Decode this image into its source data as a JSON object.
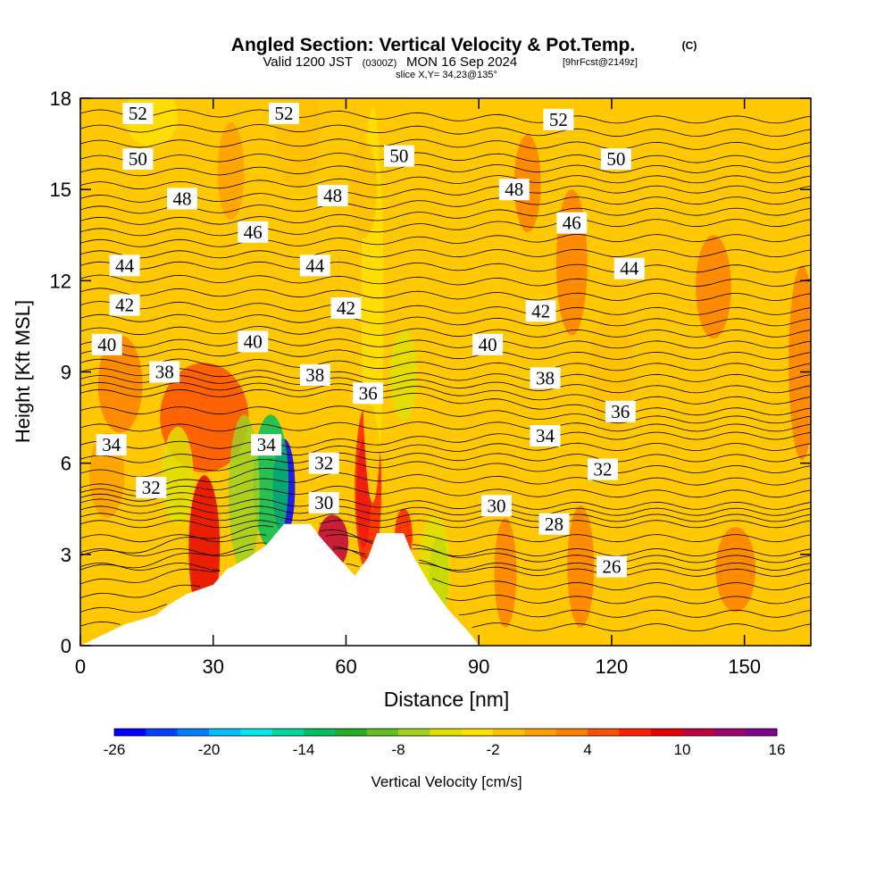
{
  "chart_data": {
    "type": "heatmap",
    "title": "Angled Section: Vertical Velocity & Pot.Temp.",
    "title_tag": "(C)",
    "subtitle_prefix": "Valid 1200 JST",
    "subtitle_utc": "(0300Z)",
    "subtitle_date": "MON 16 Sep 2024",
    "subtitle_fcst": "[9hrFcst@2149z]",
    "slice_label": "slice X,Y= 34,23@135°",
    "xlabel": "Distance [nm]",
    "ylabel": "Height [Kft MSL]",
    "xlim": [
      0,
      165
    ],
    "ylim": [
      0,
      18
    ],
    "x_ticks": [
      "0",
      "30",
      "60",
      "90",
      "120",
      "150"
    ],
    "y_ticks": [
      "0",
      "3",
      "6",
      "9",
      "12",
      "15",
      "18"
    ],
    "colorbar": {
      "label": "Vertical Velocity [cm/s]",
      "tick_labels": [
        "-26",
        "-20",
        "-14",
        "-8",
        "-2",
        "4",
        "10",
        "16"
      ],
      "colors": [
        "#0000ff",
        "#0040ff",
        "#0080ff",
        "#00c0ff",
        "#00e8e8",
        "#00d8a0",
        "#00c060",
        "#20b020",
        "#60c020",
        "#a0d020",
        "#e0e000",
        "#ffe000",
        "#ffc000",
        "#ffa000",
        "#ff8000",
        "#ff5000",
        "#ff2000",
        "#e80000",
        "#c00040",
        "#a00070",
        "#800090"
      ]
    },
    "terrain_kft": [
      [
        0,
        0
      ],
      [
        10,
        0.7
      ],
      [
        17,
        1
      ],
      [
        20,
        1.35
      ],
      [
        24,
        1.7
      ],
      [
        30,
        2
      ],
      [
        33,
        2.5
      ],
      [
        38,
        2.9
      ],
      [
        42,
        3.3
      ],
      [
        46,
        4
      ],
      [
        52,
        4
      ],
      [
        54,
        3.6
      ],
      [
        57,
        3.1
      ],
      [
        62,
        2.3
      ],
      [
        65,
        2.9
      ],
      [
        67,
        3.7
      ],
      [
        73,
        3.7
      ],
      [
        75,
        3
      ],
      [
        79,
        2
      ],
      [
        83,
        1.2
      ],
      [
        88,
        0.4
      ],
      [
        90,
        0
      ],
      [
        165,
        0
      ]
    ],
    "isentropes": [
      {
        "label": "52",
        "pos": [
          [
            13,
            17.5
          ],
          [
            46,
            17.5
          ],
          [
            108,
            17.3
          ]
        ]
      },
      {
        "label": "50",
        "pos": [
          [
            13,
            16.0
          ],
          [
            72,
            16.1
          ],
          [
            121,
            16.0
          ]
        ]
      },
      {
        "label": "48",
        "pos": [
          [
            23,
            14.7
          ],
          [
            57,
            14.8
          ],
          [
            98,
            15.0
          ]
        ]
      },
      {
        "label": "46",
        "pos": [
          [
            39,
            13.6
          ],
          [
            111,
            13.9
          ]
        ]
      },
      {
        "label": "44",
        "pos": [
          [
            10,
            12.5
          ],
          [
            53,
            12.5
          ],
          [
            124,
            12.4
          ]
        ]
      },
      {
        "label": "42",
        "pos": [
          [
            10,
            11.2
          ],
          [
            60,
            11.1
          ],
          [
            104,
            11.0
          ]
        ]
      },
      {
        "label": "40",
        "pos": [
          [
            6,
            9.9
          ],
          [
            39,
            10.0
          ],
          [
            92,
            9.9
          ]
        ]
      },
      {
        "label": "38",
        "pos": [
          [
            19,
            9.0
          ],
          [
            53,
            8.9
          ],
          [
            105,
            8.8
          ]
        ]
      },
      {
        "label": "36",
        "pos": [
          [
            65,
            8.3
          ],
          [
            122,
            7.7
          ]
        ]
      },
      {
        "label": "34",
        "pos": [
          [
            7,
            6.6
          ],
          [
            42,
            6.6
          ],
          [
            105,
            6.9
          ]
        ]
      },
      {
        "label": "32",
        "pos": [
          [
            16,
            5.2
          ],
          [
            55,
            6.0
          ],
          [
            118,
            5.8
          ]
        ]
      },
      {
        "label": "30",
        "pos": [
          [
            55,
            4.7
          ],
          [
            94,
            4.6
          ]
        ]
      },
      {
        "label": "28",
        "pos": [
          [
            107,
            4.0
          ]
        ]
      },
      {
        "label": "26",
        "pos": [
          [
            120,
            2.6
          ]
        ]
      }
    ]
  }
}
